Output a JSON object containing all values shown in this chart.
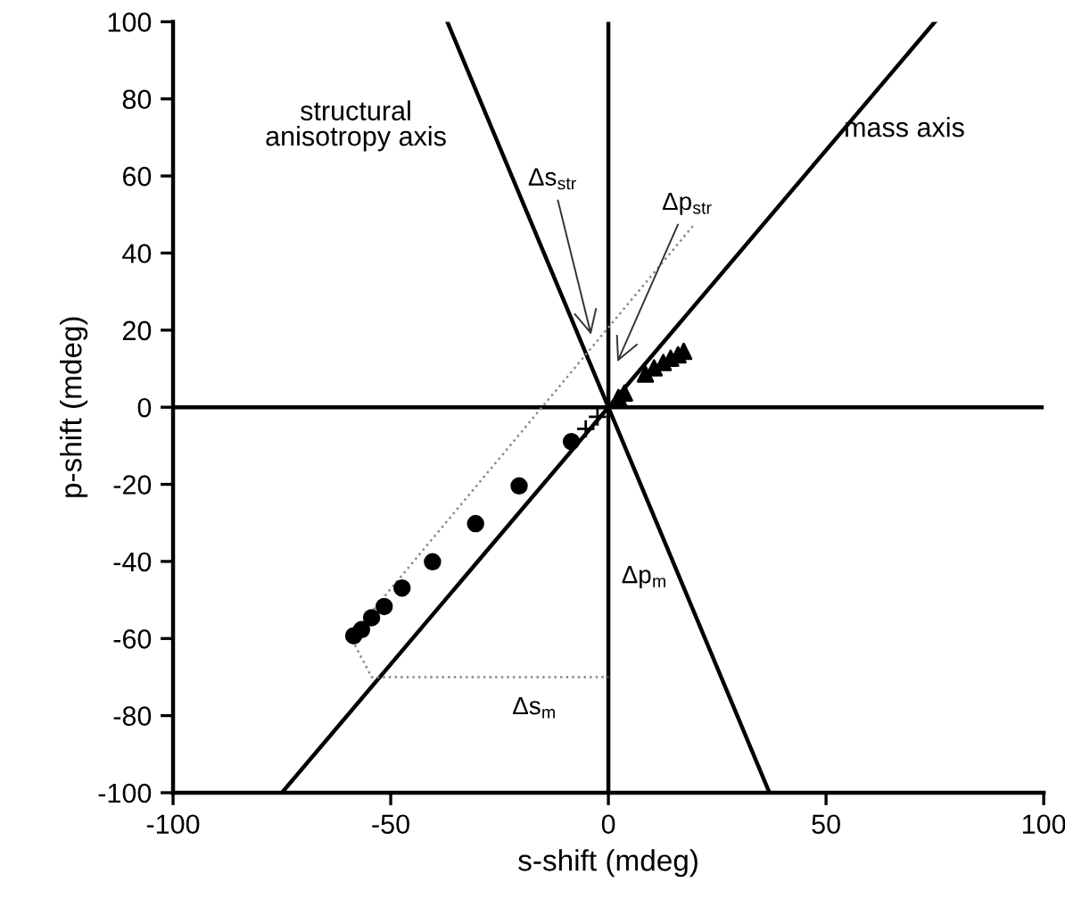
{
  "chart_data": {
    "type": "scatter",
    "xlabel": "s-shift (mdeg)",
    "ylabel": "p-shift (mdeg)",
    "xlim": [
      -100,
      100
    ],
    "ylim": [
      -100,
      100
    ],
    "xticks": [
      -100,
      -50,
      0,
      50,
      100
    ],
    "yticks": [
      -100,
      -80,
      -60,
      -40,
      -20,
      0,
      20,
      40,
      60,
      80,
      100
    ],
    "grid": false,
    "series": [
      {
        "type": "line",
        "color": "#000000",
        "marker": "none",
        "line_style": "solid",
        "x": [
          0,
          0
        ],
        "values": [
          -100,
          100
        ]
      },
      {
        "type": "line",
        "color": "#000000",
        "marker": "none",
        "line_style": "solid",
        "x": [
          -100,
          100
        ],
        "values": [
          0,
          0
        ]
      },
      {
        "type": "line",
        "color": "#000000",
        "marker": "none",
        "line_style": "solid",
        "x": [
          -75,
          75
        ],
        "values": [
          -100,
          100
        ]
      },
      {
        "type": "line",
        "color": "#000000",
        "marker": "none",
        "line_style": "solid",
        "x": [
          -37,
          37
        ],
        "values": [
          100,
          -100
        ]
      },
      {
        "type": "line",
        "color": "#888888",
        "marker": "none",
        "line_style": "dotted",
        "x": [
          19.4,
          -59.2,
          -54.4,
          0
        ],
        "values": [
          47,
          -59.6,
          -70,
          -70
        ]
      },
      {
        "color": "#000000",
        "marker": "circle",
        "x": [
          -58.5,
          -56.7,
          -54.4,
          -51.5,
          -47.4,
          -40.4,
          -30.5,
          -20.5,
          -8.5
        ],
        "values": [
          -59.3,
          -57.7,
          -54.6,
          -51.7,
          -46.9,
          -40.1,
          -30.2,
          -20.4,
          -8.9
        ]
      },
      {
        "color": "#000000",
        "marker": "triangle",
        "x": [
          17.3,
          16,
          14.3,
          12.6,
          10.5,
          8.5,
          3.7,
          2.3
        ],
        "values": [
          14.5,
          13.6,
          12.7,
          11.6,
          10.2,
          8.6,
          3.7,
          2.5
        ]
      },
      {
        "color": "#000000",
        "marker": "cross",
        "x": [
          -5.2,
          -2.5
        ],
        "values": [
          -5.6,
          -2.5
        ]
      }
    ],
    "annotations": [
      "structural\nanisotropy axis",
      "mass axis",
      {
        "text": "Δs$_{str}$",
        "x": -3.7,
        "y": 17.6
      },
      {
        "text": "Δp$_{str}$",
        "x": 1.6,
        "y": 10.6
      },
      "Δp$_{m}$",
      "Δs$_{m}$"
    ]
  }
}
